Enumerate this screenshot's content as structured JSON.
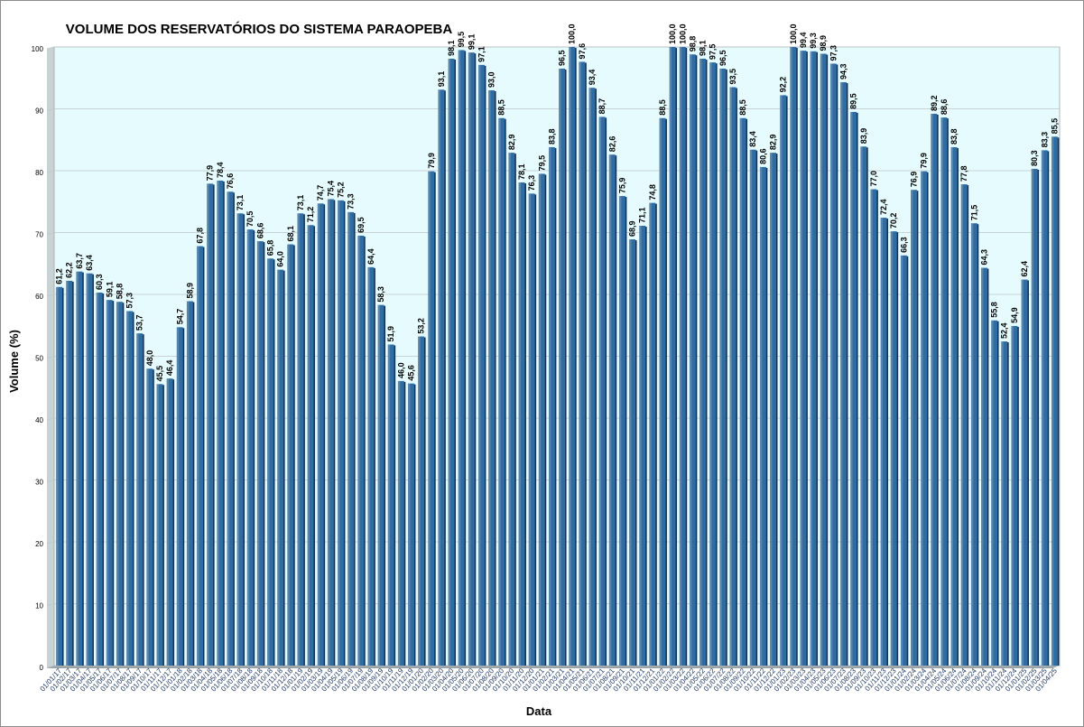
{
  "chart_data": {
    "type": "bar",
    "title": "VOLUME DOS RESERVATÓRIOS DO SISTEMA  PARAOPEBA",
    "xlabel": "Data",
    "ylabel": "Volume (%)",
    "ylim": [
      0,
      100
    ],
    "yticks": [
      0,
      10,
      20,
      30,
      40,
      50,
      60,
      70,
      80,
      90,
      100
    ],
    "grid": true,
    "legend": "none",
    "colors": {
      "bar": "#2e6ca4",
      "bar_shadow": "#1a2f4a",
      "plot_bg": "#e6fbfd",
      "grid": "#bfc6c9",
      "title": "#000000"
    },
    "categories": [
      "01/01/17",
      "01/02/17",
      "01/03/17",
      "01/04/17",
      "01/05/17",
      "01/06/17",
      "01/07/17",
      "01/08/17",
      "01/09/17",
      "01/10/17",
      "01/11/17",
      "01/12/17",
      "01/01/18",
      "01/02/18",
      "01/03/18",
      "01/04/18",
      "01/05/18",
      "01/06/18",
      "01/07/18",
      "01/08/18",
      "01/09/18",
      "01/10/18",
      "01/11/18",
      "01/12/18",
      "01/01/19",
      "01/02/19",
      "01/03/19",
      "01/04/19",
      "01/05/19",
      "01/06/19",
      "01/07/19",
      "01/08/19",
      "01/09/19",
      "01/10/19",
      "01/11/19",
      "01/12/19",
      "01/01/20",
      "01/02/20",
      "01/03/20",
      "01/04/20",
      "01/05/20",
      "01/06/20",
      "01/07/20",
      "01/08/20",
      "01/09/20",
      "01/10/20",
      "01/11/20",
      "01/12/20",
      "01/01/21",
      "01/02/21",
      "01/03/21",
      "01/04/21",
      "01/05/21",
      "01/06/21",
      "01/07/21",
      "01/08/21",
      "01/09/21",
      "01/10/21",
      "01/11/21",
      "01/12/21",
      "01/01/22",
      "01/02/22",
      "01/03/22",
      "01/04/22",
      "01/05/22",
      "01/06/22",
      "01/07/22",
      "01/08/22",
      "01/09/22",
      "01/10/22",
      "01/11/22",
      "01/12/22",
      "01/01/23",
      "01/02/23",
      "01/03/23",
      "01/04/23",
      "01/05/23",
      "01/06/23",
      "01/07/23",
      "01/08/23",
      "01/09/23",
      "01/10/23",
      "01/11/23",
      "01/12/23",
      "01/01/24",
      "01/02/24",
      "01/03/24",
      "01/04/24",
      "01/05/24",
      "01/06/24",
      "01/07/24",
      "01/08/24",
      "01/09/24",
      "01/10/24",
      "01/11/24",
      "01/12/24",
      "01/01/25",
      "01/02/25",
      "01/03/25",
      "01/04/25"
    ],
    "values": [
      61.2,
      62.2,
      63.7,
      63.4,
      60.3,
      59.1,
      58.8,
      57.3,
      53.7,
      48.0,
      45.5,
      46.4,
      54.7,
      58.9,
      67.8,
      77.9,
      78.4,
      76.6,
      73.1,
      70.5,
      68.6,
      65.8,
      64.0,
      68.1,
      73.1,
      71.2,
      74.7,
      75.4,
      75.2,
      73.3,
      69.5,
      64.4,
      58.3,
      51.9,
      46.0,
      45.6,
      53.2,
      79.9,
      93.1,
      98.1,
      99.5,
      99.1,
      97.1,
      93.0,
      88.5,
      82.9,
      78.1,
      76.3,
      79.5,
      83.8,
      96.5,
      100.0,
      97.6,
      93.4,
      88.7,
      82.6,
      75.9,
      68.9,
      71.1,
      74.8,
      88.5,
      100.0,
      100.0,
      98.8,
      98.1,
      97.5,
      96.5,
      93.5,
      88.5,
      83.4,
      80.6,
      82.9,
      92.2,
      100.0,
      99.4,
      99.3,
      98.9,
      97.3,
      94.3,
      89.5,
      83.9,
      77.0,
      72.4,
      70.2,
      66.3,
      76.9,
      79.9,
      89.2,
      88.6,
      83.8,
      77.8,
      71.5,
      64.3,
      55.8,
      52.4,
      54.9,
      62.4,
      80.3,
      83.3,
      85.5
    ],
    "data_labels": [
      "61,2",
      "62,2",
      "63,7",
      "63,4",
      "60,3",
      "59,1",
      "58,8",
      "57,3",
      "53,7",
      "48,0",
      "45,5",
      "46,4",
      "54,7",
      "58,9",
      "67,8",
      "77,9",
      "78,4",
      "76,6",
      "73,1",
      "70,5",
      "68,6",
      "65,8",
      "64,0",
      "68,1",
      "73,1",
      "71,2",
      "74,7",
      "75,4",
      "75,2",
      "73,3",
      "69,5",
      "64,4",
      "58,3",
      "51,9",
      "46,0",
      "45,6",
      "53,2",
      "79,9",
      "93,1",
      "98,1",
      "99,5",
      "99,1",
      "97,1",
      "93,0",
      "88,5",
      "82,9",
      "78,1",
      "76,3",
      "79,5",
      "83,8",
      "96,5",
      "100,0",
      "97,6",
      "93,4",
      "88,7",
      "82,6",
      "75,9",
      "68,9",
      "71,1",
      "74,8",
      "88,5",
      "100,0",
      "100,0",
      "98,8",
      "98,1",
      "97,5",
      "96,5",
      "93,5",
      "88,5",
      "83,4",
      "80,6",
      "82,9",
      "92,2",
      "100,0",
      "99,4",
      "99,3",
      "98,9",
      "97,3",
      "94,3",
      "89,5",
      "83,9",
      "77,0",
      "72,4",
      "70,2",
      "66,3",
      "76,9",
      "79,9",
      "89,2",
      "88,6",
      "83,8",
      "77,8",
      "71,5",
      "64,3",
      "55,8",
      "52,4",
      "54,9",
      "62,4",
      "80,3",
      "83,3",
      "85,5"
    ]
  }
}
